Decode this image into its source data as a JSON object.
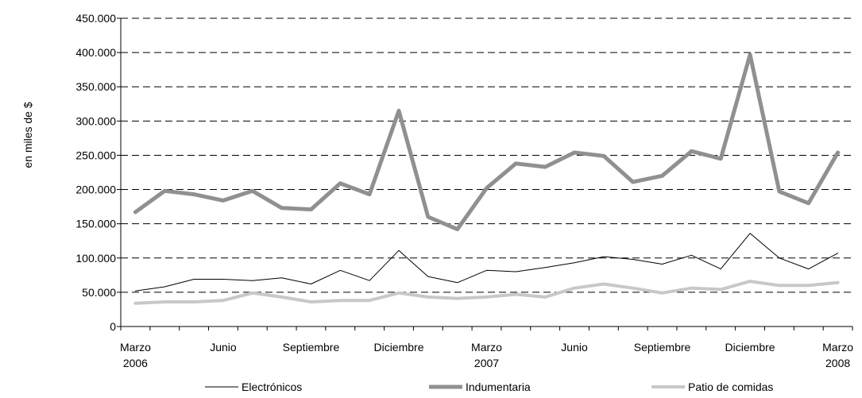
{
  "chart_data": {
    "type": "line",
    "ylabel": "en miles de $",
    "ylim": [
      0,
      450000
    ],
    "yticks": [
      0,
      50000,
      100000,
      150000,
      200000,
      250000,
      300000,
      350000,
      400000,
      450000
    ],
    "ytick_labels": [
      "0",
      "50.000",
      "100.000",
      "150.000",
      "200.000",
      "250.000",
      "300.000",
      "350.000",
      "400.000",
      "450.000"
    ],
    "grid": true,
    "legend_position": "bottom",
    "x_labels": [
      {
        "index": 0,
        "lines": [
          "Marzo",
          "2006"
        ]
      },
      {
        "index": 3,
        "lines": [
          "Junio"
        ]
      },
      {
        "index": 6,
        "lines": [
          "Septiembre"
        ]
      },
      {
        "index": 9,
        "lines": [
          "Diciembre"
        ]
      },
      {
        "index": 12,
        "lines": [
          "Marzo",
          "2007"
        ]
      },
      {
        "index": 15,
        "lines": [
          "Junio"
        ]
      },
      {
        "index": 18,
        "lines": [
          "Septiembre"
        ]
      },
      {
        "index": 21,
        "lines": [
          "Diciembre"
        ]
      },
      {
        "index": 24,
        "lines": [
          "Marzo",
          "2008"
        ]
      }
    ],
    "series": [
      {
        "name": "Electrónicos",
        "color": "#000000",
        "style": "thin",
        "values": [
          52000,
          58000,
          69000,
          69000,
          67000,
          71000,
          62000,
          82000,
          67000,
          111000,
          73000,
          64000,
          82000,
          80000,
          86000,
          93000,
          102000,
          98000,
          91000,
          104000,
          84000,
          136000,
          100000,
          84000,
          107000
        ]
      },
      {
        "name": "Indumentaria",
        "color": "#909090",
        "style": "thick",
        "values": [
          167000,
          198000,
          193000,
          184000,
          198000,
          173000,
          171000,
          209000,
          193000,
          315000,
          160000,
          142000,
          202000,
          238000,
          233000,
          254000,
          249000,
          211000,
          220000,
          256000,
          245000,
          397000,
          197000,
          180000,
          254000
        ]
      },
      {
        "name": "Patio de comidas",
        "color": "#c8c8c8",
        "style": "medium",
        "values": [
          34000,
          36000,
          36000,
          38000,
          49000,
          43000,
          36000,
          38000,
          38000,
          49000,
          43000,
          41000,
          43000,
          47000,
          43000,
          56000,
          62000,
          56000,
          49000,
          56000,
          54000,
          66000,
          60000,
          60000,
          64000
        ]
      }
    ]
  }
}
